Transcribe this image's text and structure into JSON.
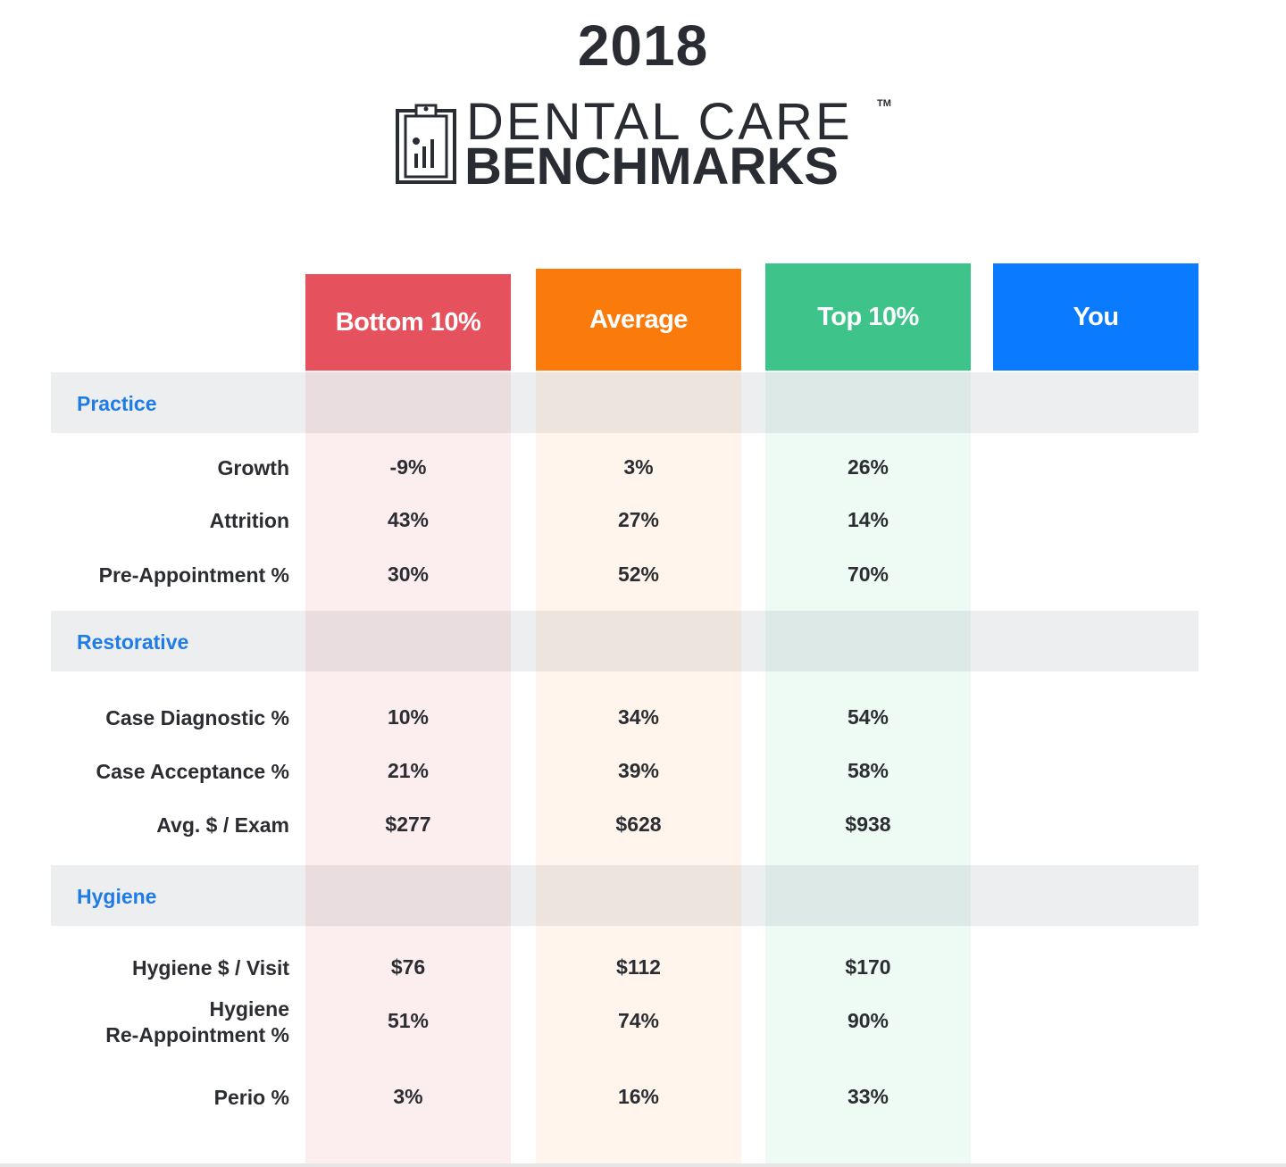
{
  "header": {
    "year": "2018",
    "logo_line1": "DENTAL CARE",
    "logo_tm": "TM",
    "logo_line2": "BENCHMARKS"
  },
  "colors": {
    "bottom": "#e5515d",
    "average": "#fa7a0b",
    "top": "#3ec38a",
    "you": "#0a7bff",
    "section_label": "#1f7ce6"
  },
  "columns": [
    "Bottom 10%",
    "Average",
    "Top 10%",
    "You"
  ],
  "sections": [
    {
      "name": "Practice",
      "rows": [
        {
          "label": "Growth",
          "values": [
            "-9%",
            "3%",
            "26%"
          ]
        },
        {
          "label": "Attrition",
          "values": [
            "43%",
            "27%",
            "14%"
          ]
        },
        {
          "label": "Pre-Appointment %",
          "values": [
            "30%",
            "52%",
            "70%"
          ]
        }
      ]
    },
    {
      "name": "Restorative",
      "rows": [
        {
          "label": "Case Diagnostic %",
          "values": [
            "10%",
            "34%",
            "54%"
          ]
        },
        {
          "label": "Case Acceptance %",
          "values": [
            "21%",
            "39%",
            "58%"
          ]
        },
        {
          "label": "Avg. $ / Exam",
          "values": [
            "$277",
            "$628",
            "$938"
          ]
        }
      ]
    },
    {
      "name": "Hygiene",
      "rows": [
        {
          "label": "Hygiene $ / Visit",
          "values": [
            "$76",
            "$112",
            "$170"
          ]
        },
        {
          "label": "Hygiene\nRe-Appointment %",
          "values": [
            "51%",
            "74%",
            "90%"
          ]
        },
        {
          "label": "Perio %",
          "values": [
            "3%",
            "16%",
            "33%"
          ]
        }
      ]
    }
  ]
}
